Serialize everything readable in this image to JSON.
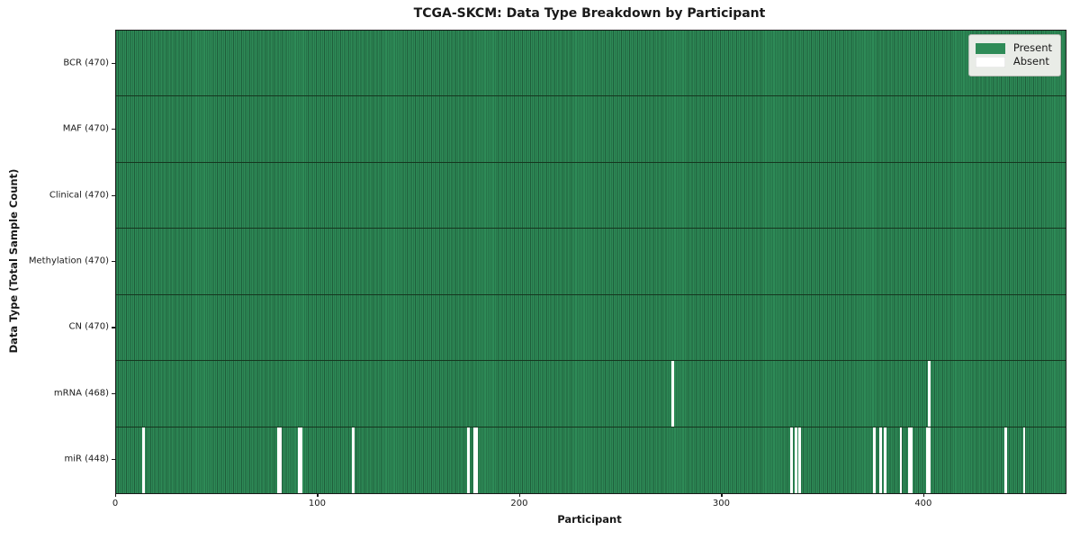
{
  "chart_data": {
    "type": "heatmap",
    "title": "TCGA-SKCM: Data Type Breakdown by Participant",
    "xlabel": "Participant",
    "ylabel": "Data Type (Total Sample Count)",
    "n_participants": 470,
    "x_range": [
      0,
      470
    ],
    "x_ticks": [
      0,
      100,
      200,
      300,
      400
    ],
    "grid": false,
    "legend_position": "upper right",
    "legend": [
      {
        "label": "Present",
        "color": "#2e8b57"
      },
      {
        "label": "Absent",
        "color": "#ffffff"
      }
    ],
    "colors": {
      "present": "#2e8b57",
      "present_edge": "#1f5e3b",
      "absent": "#ffffff",
      "row_divider": "#15361f",
      "spine": "#1a1a1a",
      "legend_bg": "#e9ece7",
      "legend_border": "#b4b8b2"
    },
    "rows": [
      {
        "label": "BCR (470)",
        "present_count": 470,
        "absent_participants": []
      },
      {
        "label": "MAF (470)",
        "present_count": 470,
        "absent_participants": []
      },
      {
        "label": "Clinical (470)",
        "present_count": 470,
        "absent_participants": []
      },
      {
        "label": "Methylation (470)",
        "present_count": 470,
        "absent_participants": []
      },
      {
        "label": "CN (470)",
        "present_count": 470,
        "absent_participants": []
      },
      {
        "label": "mRNA (468)",
        "present_count": 468,
        "absent_participants": [
          275,
          402
        ]
      },
      {
        "label": "miR (448)",
        "present_count": 448,
        "absent_participants": [
          13,
          80,
          81,
          90,
          91,
          117,
          174,
          177,
          178,
          334,
          336,
          338,
          375,
          378,
          380,
          388,
          392,
          393,
          401,
          402,
          440,
          449
        ]
      }
    ]
  }
}
